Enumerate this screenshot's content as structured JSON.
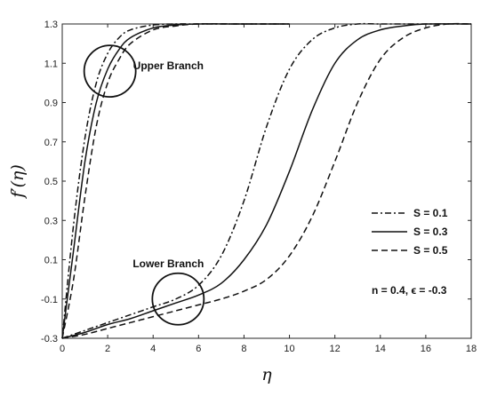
{
  "chart_data": {
    "type": "line",
    "xlabel": "η",
    "ylabel": "f′(η)",
    "xlim": [
      0,
      18
    ],
    "ylim": [
      -0.3,
      1.3
    ],
    "xticks": [
      "0",
      "2",
      "4",
      "6",
      "8",
      "10",
      "12",
      "14",
      "16",
      "18"
    ],
    "yticks": [
      "-0.3",
      "-0.1",
      "0.1",
      "0.3",
      "0.5",
      "0.7",
      "0.9",
      "1.1",
      "1.3"
    ],
    "grid": false,
    "legend_position": "right",
    "legend": [
      {
        "label": "S = 0.1",
        "dash": "dashdot"
      },
      {
        "label": "S = 0.3",
        "dash": "solid"
      },
      {
        "label": "S = 0.5",
        "dash": "dashed"
      }
    ],
    "parameters_text": "n = 0.4, ϵ = -0.3",
    "annotations": [
      {
        "text": "Upper Branch",
        "circle_center": [
          2.1,
          1.06
        ]
      },
      {
        "text": "Lower Branch",
        "circle_center": [
          5.1,
          -0.1
        ]
      }
    ],
    "series": [
      {
        "name": "S = 0.1",
        "branch": "upper",
        "dash": "dashdot",
        "x": [
          0,
          0.5,
          1.0,
          1.5,
          2.0,
          2.5,
          3.0,
          4.0,
          5.0,
          6.0,
          8.0,
          10.0
        ],
        "y": [
          -0.3,
          0.28,
          0.72,
          1.0,
          1.15,
          1.23,
          1.27,
          1.295,
          1.3,
          1.3,
          1.3,
          1.3
        ]
      },
      {
        "name": "S = 0.3",
        "branch": "upper",
        "dash": "solid",
        "x": [
          0,
          0.5,
          1.0,
          1.5,
          2.0,
          2.5,
          3.0,
          4.0,
          5.0,
          6.0,
          8.0,
          10.0
        ],
        "y": [
          -0.3,
          0.15,
          0.6,
          0.9,
          1.07,
          1.17,
          1.23,
          1.28,
          1.295,
          1.3,
          1.3,
          1.3
        ]
      },
      {
        "name": "S = 0.5",
        "branch": "upper",
        "dash": "dashed",
        "x": [
          0,
          0.5,
          1.0,
          1.5,
          2.0,
          2.5,
          3.0,
          4.0,
          5.0,
          6.0,
          8.0,
          10.0
        ],
        "y": [
          -0.3,
          0.0,
          0.42,
          0.78,
          1.0,
          1.12,
          1.2,
          1.27,
          1.29,
          1.3,
          1.3,
          1.3
        ]
      },
      {
        "name": "S = 0.1",
        "branch": "lower",
        "dash": "dashdot",
        "x": [
          0,
          1,
          2,
          3,
          4,
          5,
          6,
          7,
          8,
          9,
          10,
          11,
          12,
          13,
          14,
          16,
          18
        ],
        "y": [
          -0.3,
          -0.26,
          -0.22,
          -0.18,
          -0.14,
          -0.1,
          -0.03,
          0.12,
          0.4,
          0.78,
          1.07,
          1.22,
          1.28,
          1.3,
          1.3,
          1.3,
          1.3
        ]
      },
      {
        "name": "S = 0.3",
        "branch": "lower",
        "dash": "solid",
        "x": [
          0,
          1,
          2,
          3,
          4,
          5,
          6,
          7,
          8,
          9,
          10,
          11,
          12,
          13,
          14,
          15,
          16,
          18
        ],
        "y": [
          -0.3,
          -0.27,
          -0.23,
          -0.2,
          -0.16,
          -0.12,
          -0.08,
          -0.02,
          0.1,
          0.28,
          0.55,
          0.86,
          1.1,
          1.22,
          1.27,
          1.29,
          1.3,
          1.3
        ]
      },
      {
        "name": "S = 0.5",
        "branch": "lower",
        "dash": "dashed",
        "x": [
          0,
          1,
          2,
          3,
          4,
          5,
          6,
          7,
          8,
          9,
          10,
          11,
          12,
          13,
          14,
          15,
          16,
          17,
          18
        ],
        "y": [
          -0.3,
          -0.28,
          -0.25,
          -0.22,
          -0.19,
          -0.16,
          -0.13,
          -0.1,
          -0.06,
          0.0,
          0.12,
          0.32,
          0.6,
          0.9,
          1.12,
          1.23,
          1.28,
          1.3,
          1.3
        ]
      }
    ]
  }
}
